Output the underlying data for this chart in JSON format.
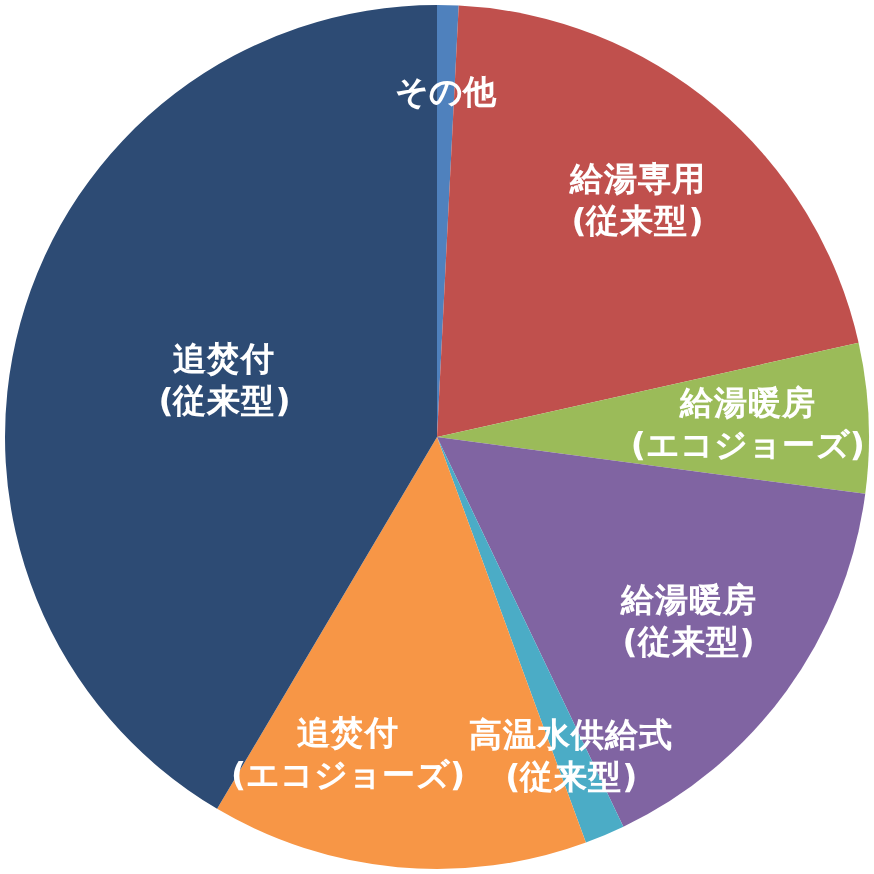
{
  "chart_data": {
    "type": "pie",
    "categories": [
      "その他",
      "給湯専用\n(従来型)",
      "給湯暖房\n(エコジョーズ)",
      "給湯暖房\n(従来型)",
      "高温水供給式\n(従来型)",
      "追焚付\n(エコジョーズ)",
      "追焚付\n(従来型)"
    ],
    "values": [
      0.8,
      20.7,
      5.6,
      15.8,
      1.5,
      14.1,
      41.5
    ],
    "colors": [
      "#4f81bd",
      "#c0504d",
      "#9bbb59",
      "#8064a2",
      "#4bacc6",
      "#f79646",
      "#2d4b74"
    ]
  }
}
